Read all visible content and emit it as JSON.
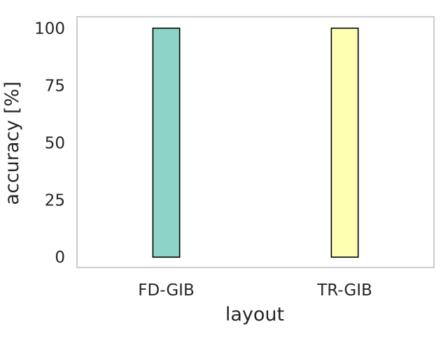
{
  "chart_data": {
    "type": "bar",
    "categories": [
      "FD-GIB",
      "TR-GIB"
    ],
    "values": [
      100,
      100
    ],
    "colors": [
      "#8dd3c7",
      "#ffffb3"
    ],
    "edge_color": "#000000",
    "title": "",
    "xlabel": "layout",
    "ylabel": "accuracy [%]",
    "ylim": [
      -4.5,
      105
    ],
    "yticks": [
      0,
      25,
      50,
      75,
      100
    ],
    "ytick_labels": [
      "0",
      "25",
      "50",
      "75",
      "100"
    ],
    "grid": false,
    "legend": "none",
    "frame_color": "#cccccc"
  }
}
